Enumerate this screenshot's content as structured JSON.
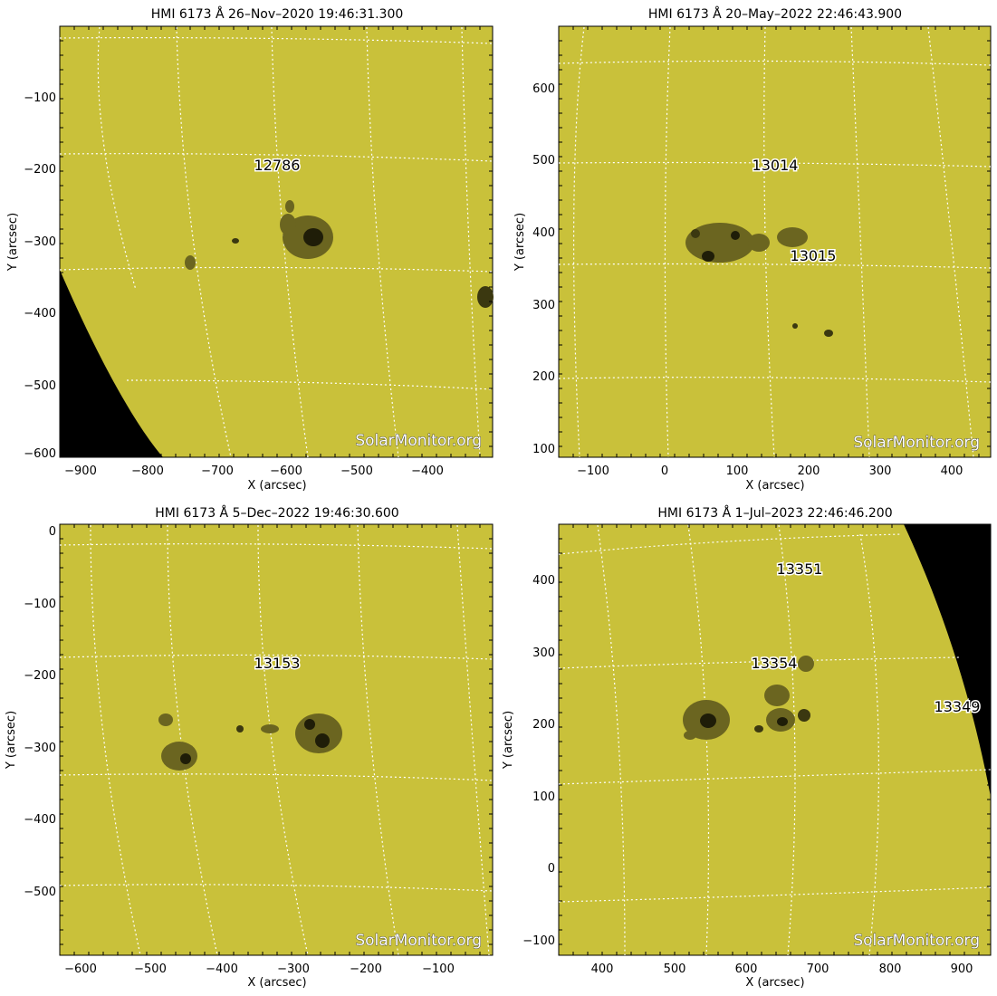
{
  "colors": {
    "disk": "#c9c13a",
    "space": "#000000",
    "grid": "#ffffff",
    "spot_penumbra": "#6b6520",
    "spot_umbra": "#1f1d08",
    "label": "#000000",
    "watermark": "#ffffff"
  },
  "panels": [
    {
      "title": "HMI  6173  Å  26–Nov–2020  19:46:31.300",
      "xlabel": "X  (arcsec)",
      "ylabel": "Y  (arcsec)",
      "xticks": [
        "−900",
        "−800",
        "−700",
        "−600",
        "−500",
        "−400"
      ],
      "yticks": [
        "−100",
        "−200",
        "−300",
        "−400",
        "−500",
        "−600"
      ],
      "regions": [
        "12786"
      ],
      "watermark": "SolarMonitor.org",
      "limb": "lower-left"
    },
    {
      "title": "HMI  6173  Å  20–May–2022  22:46:43.900",
      "xlabel": "X  (arcsec)",
      "ylabel": "Y  (arcsec)",
      "xticks": [
        "−100",
        "0",
        "100",
        "200",
        "300",
        "400"
      ],
      "yticks": [
        "600",
        "500",
        "400",
        "300",
        "200",
        "100"
      ],
      "regions": [
        "13014",
        "13015"
      ],
      "watermark": "SolarMonitor.org",
      "limb": "none"
    },
    {
      "title": "HMI  6173  Å   5–Dec–2022  19:46:30.600",
      "xlabel": "X  (arcsec)",
      "ylabel": "Y  (arcsec)",
      "xticks": [
        "−600",
        "−500",
        "−400",
        "−300",
        "−200",
        "−100"
      ],
      "yticks": [
        "0",
        "−100",
        "−200",
        "−300",
        "−400",
        "−500"
      ],
      "regions": [
        "13153"
      ],
      "watermark": "SolarMonitor.org",
      "limb": "none"
    },
    {
      "title": "HMI  6173  Å   1–Jul–2023  22:46:46.200",
      "xlabel": "X  (arcsec)",
      "ylabel": "Y  (arcsec)",
      "xticks": [
        "400",
        "500",
        "600",
        "700",
        "800",
        "900"
      ],
      "yticks": [
        "400",
        "300",
        "200",
        "100",
        "0",
        "−100"
      ],
      "regions": [
        "13351",
        "13354",
        "13349"
      ],
      "watermark": "SolarMonitor.org",
      "limb": "upper-right"
    }
  ]
}
